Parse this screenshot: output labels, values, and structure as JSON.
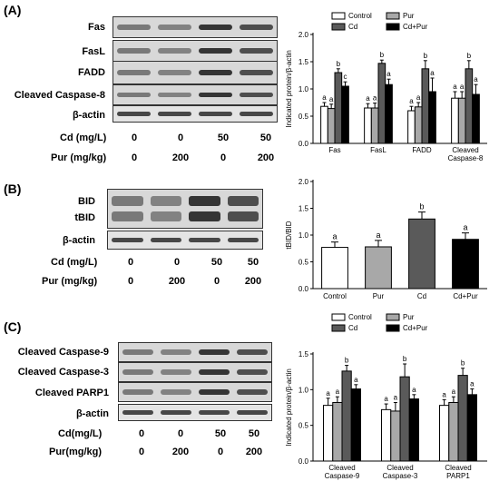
{
  "panels": [
    {
      "label": "(A)",
      "blot_rows": [
        "Fas",
        "FasL",
        "FADD",
        "Cleaved Caspase-8",
        "β-actin"
      ],
      "treatments": [
        {
          "name": "Cd (mg/L)",
          "values": [
            "0",
            "0",
            "50",
            "50"
          ]
        },
        {
          "name": "Pur (mg/kg)",
          "values": [
            "0",
            "200",
            "0",
            "200"
          ]
        }
      ],
      "chart_data": {
        "type": "bar",
        "ylabel": "Indicated protein/β-actin",
        "ylim": [
          0,
          2.0
        ],
        "yticks": [
          "0.0",
          "0.5",
          "1.0",
          "1.5",
          "2.0"
        ],
        "categories": [
          "Fas",
          "FasL",
          "FADD",
          "Cleaved Caspase-8"
        ],
        "series": [
          {
            "name": "Control",
            "values": [
              0.68,
              0.65,
              0.6,
              0.83
            ],
            "errors": [
              0.07,
              0.08,
              0.08,
              0.12
            ],
            "letters": [
              "a",
              "a",
              "a",
              "a"
            ],
            "color": "#ffffff"
          },
          {
            "name": "Pur",
            "values": [
              0.64,
              0.65,
              0.67,
              0.83
            ],
            "errors": [
              0.08,
              0.09,
              0.08,
              0.12
            ],
            "letters": [
              "a",
              "a",
              "a",
              "a"
            ],
            "color": "#a8a8a8"
          },
          {
            "name": "Cd",
            "values": [
              1.3,
              1.47,
              1.37,
              1.37
            ],
            "errors": [
              0.07,
              0.06,
              0.15,
              0.15
            ],
            "letters": [
              "b",
              "b",
              "b",
              "b"
            ],
            "color": "#5a5a5a"
          },
          {
            "name": "Cd+Pur",
            "values": [
              1.05,
              1.08,
              0.95,
              0.9
            ],
            "errors": [
              0.08,
              0.1,
              0.25,
              0.18
            ],
            "letters": [
              "c",
              "a",
              "a",
              "a"
            ],
            "color": "#000000"
          }
        ],
        "legend": "top"
      }
    },
    {
      "label": "(B)",
      "blot_rows": [
        "BID",
        "tBID",
        "β-actin"
      ],
      "treatments": [
        {
          "name": "Cd (mg/L)",
          "values": [
            "0",
            "0",
            "50",
            "50"
          ]
        },
        {
          "name": "Pur (mg/kg)",
          "values": [
            "0",
            "200",
            "0",
            "200"
          ]
        }
      ],
      "chart_data": {
        "type": "bar",
        "ylabel": "tBID/BID",
        "ylim": [
          0,
          2.0
        ],
        "yticks": [
          "0.0",
          "0.5",
          "1.0",
          "1.5",
          "2.0"
        ],
        "categories": [
          "Control",
          "Pur",
          "Cd",
          "Cd+Pur"
        ],
        "values": [
          0.77,
          0.78,
          1.3,
          0.92
        ],
        "errors": [
          0.1,
          0.12,
          0.13,
          0.12
        ],
        "letters": [
          "a",
          "a",
          "b",
          "a"
        ],
        "colors": [
          "#ffffff",
          "#a8a8a8",
          "#5a5a5a",
          "#000000"
        ]
      }
    },
    {
      "label": "(C)",
      "blot_rows": [
        "Cleaved Caspase-9",
        "Cleaved Caspase-3",
        "Cleaved PARP1",
        "β-actin"
      ],
      "treatments": [
        {
          "name": "Cd(mg/L)",
          "values": [
            "0",
            "0",
            "50",
            "50"
          ]
        },
        {
          "name": "Pur(mg/kg)",
          "values": [
            "0",
            "200",
            "0",
            "200"
          ]
        }
      ],
      "chart_data": {
        "type": "bar",
        "ylabel": "Indicated protein/β-actin",
        "ylim": [
          0,
          1.5
        ],
        "yticks": [
          "0.0",
          "0.5",
          "1.0",
          "1.5"
        ],
        "categories": [
          "Cleaved Caspase-9",
          "Cleaved Caspase-3",
          "Cleaved PARP1"
        ],
        "series": [
          {
            "name": "Control",
            "values": [
              0.78,
              0.72,
              0.78
            ],
            "errors": [
              0.1,
              0.08,
              0.08
            ],
            "letters": [
              "a",
              "a",
              "a"
            ],
            "color": "#ffffff"
          },
          {
            "name": "Pur",
            "values": [
              0.82,
              0.7,
              0.82
            ],
            "errors": [
              0.08,
              0.12,
              0.08
            ],
            "letters": [
              "a",
              "a",
              "a"
            ],
            "color": "#a8a8a8"
          },
          {
            "name": "Cd",
            "values": [
              1.26,
              1.18,
              1.2
            ],
            "errors": [
              0.08,
              0.18,
              0.1
            ],
            "letters": [
              "b",
              "b",
              "b"
            ],
            "color": "#5a5a5a"
          },
          {
            "name": "Cd+Pur",
            "values": [
              1.01,
              0.87,
              0.93
            ],
            "errors": [
              0.06,
              0.06,
              0.08
            ],
            "letters": [
              "a",
              "a",
              "a"
            ],
            "color": "#000000"
          }
        ],
        "legend": "top"
      }
    }
  ]
}
